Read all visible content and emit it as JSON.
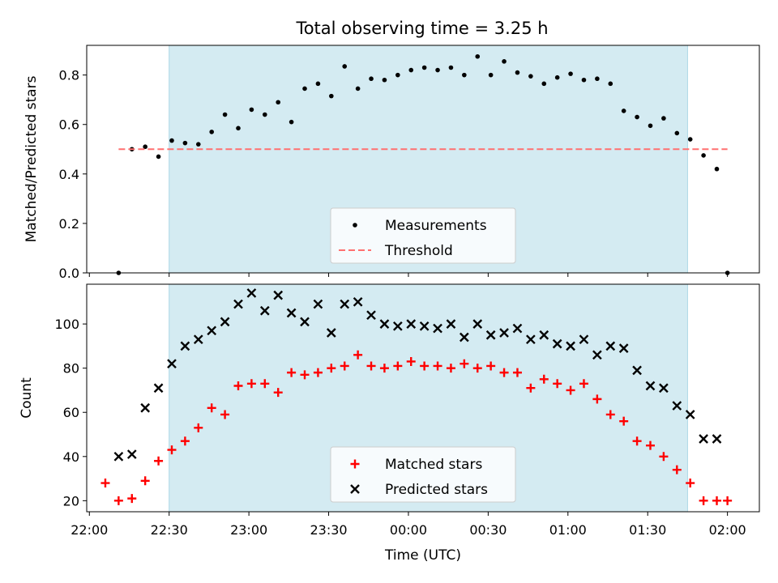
{
  "figure": {
    "title": "Total observing time = 3.25 h"
  },
  "colors": {
    "span_fill": "#add8e6",
    "measurements": "#000000",
    "threshold": "#ff7070",
    "matched": "#ff0000",
    "predicted": "#000000",
    "axis": "#000000"
  },
  "chart_data": [
    {
      "type": "scatter",
      "title": "Total observing time = 3.25 h",
      "xlabel": "",
      "ylabel": "Matched/Predicted stars",
      "ylim": [
        0,
        0.92
      ],
      "yticks": [
        0.0,
        0.2,
        0.4,
        0.6,
        0.8
      ],
      "ytick_labels": [
        "0.0",
        "0.2",
        "0.4",
        "0.6",
        "0.8"
      ],
      "xlim": [
        "21:59",
        "02:12"
      ],
      "highlight_span": [
        "22:30",
        "01:45"
      ],
      "legend": "lower center",
      "series": [
        {
          "name": "Measurements",
          "marker": "dot",
          "x": [
            "22:11",
            "22:16",
            "22:21",
            "22:26",
            "22:31",
            "22:36",
            "22:41",
            "22:46",
            "22:51",
            "22:56",
            "23:01",
            "23:06",
            "23:11",
            "23:16",
            "23:21",
            "23:26",
            "23:31",
            "23:36",
            "23:41",
            "23:46",
            "23:51",
            "23:56",
            "00:01",
            "00:06",
            "00:11",
            "00:16",
            "00:21",
            "00:26",
            "00:31",
            "00:36",
            "00:41",
            "00:46",
            "00:51",
            "00:56",
            "01:01",
            "01:06",
            "01:11",
            "01:16",
            "01:21",
            "01:26",
            "01:31",
            "01:36",
            "01:41",
            "01:46",
            "01:51",
            "01:56",
            "02:00"
          ],
          "y": [
            0.0,
            0.5,
            0.51,
            0.47,
            0.535,
            0.525,
            0.52,
            0.57,
            0.64,
            0.585,
            0.66,
            0.64,
            0.69,
            0.61,
            0.745,
            0.765,
            0.715,
            0.835,
            0.745,
            0.785,
            0.78,
            0.8,
            0.82,
            0.83,
            0.82,
            0.83,
            0.8,
            0.875,
            0.8,
            0.855,
            0.81,
            0.795,
            0.765,
            0.79,
            0.805,
            0.78,
            0.785,
            0.765,
            0.655,
            0.63,
            0.595,
            0.625,
            0.565,
            0.54,
            0.475,
            0.42,
            0.0
          ]
        },
        {
          "name": "Threshold",
          "style": "dashed",
          "x": [
            "22:11",
            "02:00"
          ],
          "y": [
            0.5,
            0.5
          ]
        }
      ]
    },
    {
      "type": "scatter",
      "xlabel": "Time (UTC)",
      "ylabel": "Count",
      "ylim": [
        15,
        118
      ],
      "yticks": [
        20,
        40,
        60,
        80,
        100
      ],
      "ytick_labels": [
        "20",
        "40",
        "60",
        "80",
        "100"
      ],
      "xlim": [
        "21:59",
        "02:12"
      ],
      "xticks": [
        "22:00",
        "22:30",
        "23:00",
        "23:30",
        "00:00",
        "00:30",
        "01:00",
        "01:30",
        "02:00"
      ],
      "highlight_span": [
        "22:30",
        "01:45"
      ],
      "legend": "lower center",
      "series": [
        {
          "name": "Matched stars",
          "marker": "plus",
          "x": [
            "22:06",
            "22:11",
            "22:16",
            "22:21",
            "22:26",
            "22:31",
            "22:36",
            "22:41",
            "22:46",
            "22:51",
            "22:56",
            "23:01",
            "23:06",
            "23:11",
            "23:16",
            "23:21",
            "23:26",
            "23:31",
            "23:36",
            "23:41",
            "23:46",
            "23:51",
            "23:56",
            "00:01",
            "00:06",
            "00:11",
            "00:16",
            "00:21",
            "00:26",
            "00:31",
            "00:36",
            "00:41",
            "00:46",
            "00:51",
            "00:56",
            "01:01",
            "01:06",
            "01:11",
            "01:16",
            "01:21",
            "01:26",
            "01:31",
            "01:36",
            "01:41",
            "01:46",
            "01:51",
            "01:56",
            "02:00"
          ],
          "y": [
            28,
            20,
            21,
            29,
            38,
            43,
            47,
            53,
            62,
            59,
            72,
            73,
            73,
            69,
            78,
            77,
            78,
            80,
            81,
            86,
            81,
            80,
            81,
            83,
            81,
            81,
            80,
            82,
            80,
            81,
            78,
            78,
            71,
            75,
            73,
            70,
            73,
            66,
            59,
            56,
            47,
            45,
            40,
            34,
            28,
            20,
            20,
            20
          ]
        },
        {
          "name": "Predicted stars",
          "marker": "x",
          "x": [
            "22:11",
            "22:16",
            "22:21",
            "22:26",
            "22:31",
            "22:36",
            "22:41",
            "22:46",
            "22:51",
            "22:56",
            "23:01",
            "23:06",
            "23:11",
            "23:16",
            "23:21",
            "23:26",
            "23:31",
            "23:36",
            "23:41",
            "23:46",
            "23:51",
            "23:56",
            "00:01",
            "00:06",
            "00:11",
            "00:16",
            "00:21",
            "00:26",
            "00:31",
            "00:36",
            "00:41",
            "00:46",
            "00:51",
            "00:56",
            "01:01",
            "01:06",
            "01:11",
            "01:16",
            "01:21",
            "01:26",
            "01:31",
            "01:36",
            "01:41",
            "01:46",
            "01:51",
            "01:56"
          ],
          "y": [
            40,
            41,
            62,
            71,
            82,
            90,
            93,
            97,
            101,
            109,
            114,
            106,
            113,
            105,
            101,
            109,
            96,
            109,
            110,
            104,
            100,
            99,
            100,
            99,
            98,
            100,
            94,
            100,
            95,
            96,
            98,
            93,
            95,
            91,
            90,
            93,
            86,
            90,
            89,
            79,
            72,
            71,
            63,
            59,
            48,
            48
          ]
        }
      ]
    }
  ]
}
